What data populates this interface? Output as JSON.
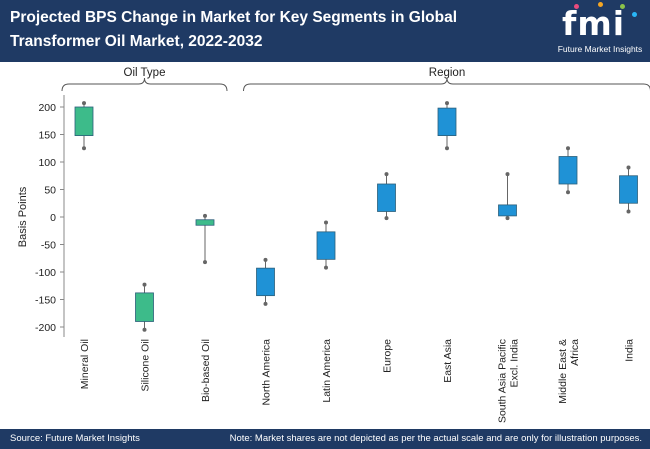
{
  "header": {
    "title": "Projected BPS Change in Market for Key Segments in Global Transformer Oil Market, 2022-2032"
  },
  "logo": {
    "mark": "fmi",
    "text": "Future Market Insights",
    "dot_colors": [
      "#e94b7d",
      "#f5a623",
      "#8bc34a",
      "#29b6f6"
    ]
  },
  "footer": {
    "source": "Source: Future Market Insights",
    "note": "Note: Market shares are not depicted as per the actual scale and are only for illustration purposes."
  },
  "chart_data": {
    "type": "box",
    "title": "Projected BPS Change in Market for Key Segments in Global Transformer Oil Market, 2022-2032",
    "ylabel": "Basis Points",
    "ylim": [
      -200,
      200
    ],
    "yticks": [
      200,
      150,
      100,
      50,
      0,
      -50,
      -100,
      -150,
      -200
    ],
    "groups": [
      {
        "label": "Oil Type",
        "start": 0,
        "end": 2,
        "color": "#3dbb8a"
      },
      {
        "label": "Region",
        "start": 3,
        "end": 9,
        "color": "#1f92d6"
      }
    ],
    "categories": [
      "Mineral Oil",
      "Silicone Oil",
      "Bio-based Oil",
      "North America",
      "Latin America",
      "Europe",
      "East Asia",
      "South Asia Pacific Excl. India",
      "Middle East & Africa",
      "India"
    ],
    "category_lines": [
      [
        "Mineral Oil"
      ],
      [
        "Silicone Oil"
      ],
      [
        "Bio-based Oil"
      ],
      [
        "North America"
      ],
      [
        "Latin America"
      ],
      [
        "Europe"
      ],
      [
        "East Asia"
      ],
      [
        "South Asia Pacific",
        "Excl. India"
      ],
      [
        "Middle East &",
        "Africa"
      ],
      [
        "India"
      ]
    ],
    "boxes": [
      {
        "low": 125,
        "q1": 148,
        "q3": 200,
        "high": 207
      },
      {
        "low": -205,
        "q1": -190,
        "q3": -138,
        "high": -123
      },
      {
        "low": -82,
        "q1": -15,
        "q3": -5,
        "high": 2
      },
      {
        "low": -158,
        "q1": -143,
        "q3": -93,
        "high": -78
      },
      {
        "low": -92,
        "q1": -77,
        "q3": -27,
        "high": -10
      },
      {
        "low": -2,
        "q1": 10,
        "q3": 60,
        "high": 78
      },
      {
        "low": 125,
        "q1": 148,
        "q3": 198,
        "high": 207
      },
      {
        "low": -2,
        "q1": 2,
        "q3": 22,
        "high": 78
      },
      {
        "low": 45,
        "q1": 60,
        "q3": 110,
        "high": 125
      },
      {
        "low": 10,
        "q1": 25,
        "q3": 75,
        "high": 90
      }
    ]
  }
}
